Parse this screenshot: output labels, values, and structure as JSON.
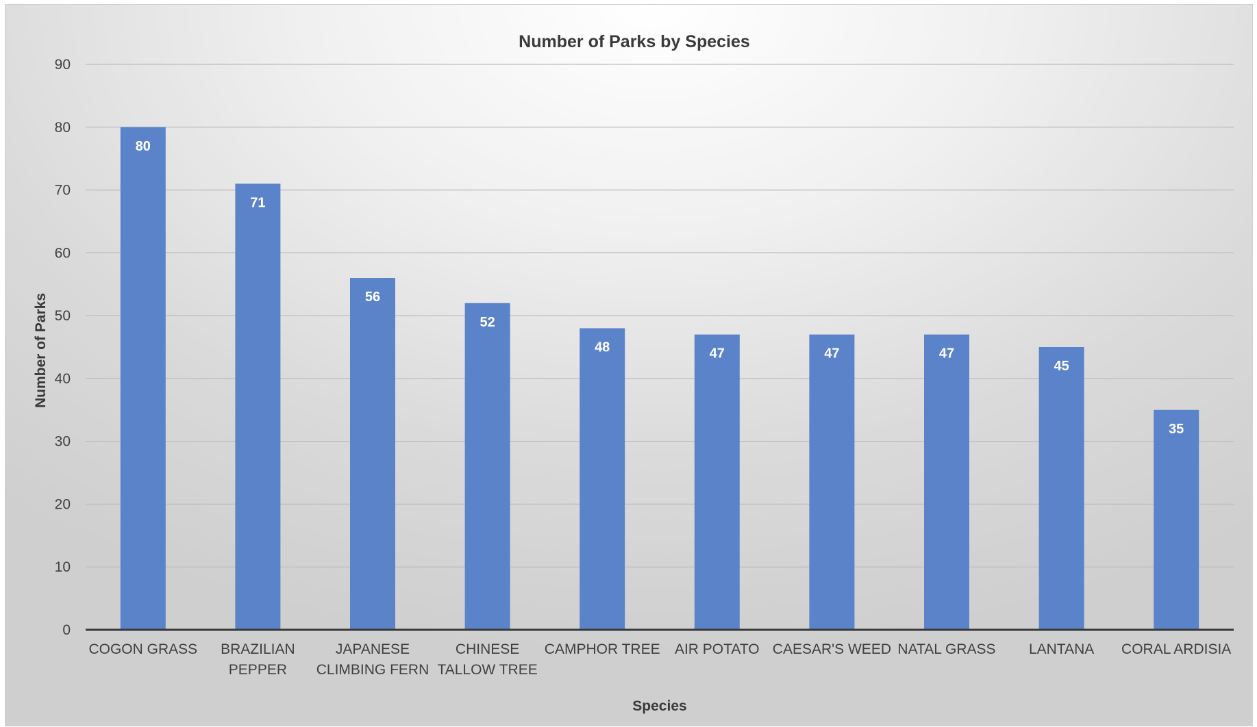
{
  "chart_data": {
    "type": "bar",
    "title": "Number of Parks by Species",
    "xlabel": "Species",
    "ylabel": "Number of Parks",
    "categories": [
      [
        "COGON GRASS"
      ],
      [
        "BRAZILIAN",
        "PEPPER"
      ],
      [
        "JAPANESE",
        "CLIMBING FERN"
      ],
      [
        "CHINESE",
        "TALLOW TREE"
      ],
      [
        "CAMPHOR TREE"
      ],
      [
        "AIR POTATO"
      ],
      [
        "CAESAR'S WEED"
      ],
      [
        "NATAL GRASS"
      ],
      [
        "LANTANA"
      ],
      [
        "CORAL ARDISIA"
      ]
    ],
    "values": [
      80,
      71,
      56,
      52,
      48,
      47,
      47,
      47,
      45,
      35
    ],
    "ylim": [
      0,
      90
    ],
    "yticks": [
      0,
      10,
      20,
      30,
      40,
      50,
      60,
      70,
      80,
      90
    ],
    "grid": true,
    "legend": "none",
    "bar_color": "#5b83c9",
    "data_labels": "inside-end"
  }
}
